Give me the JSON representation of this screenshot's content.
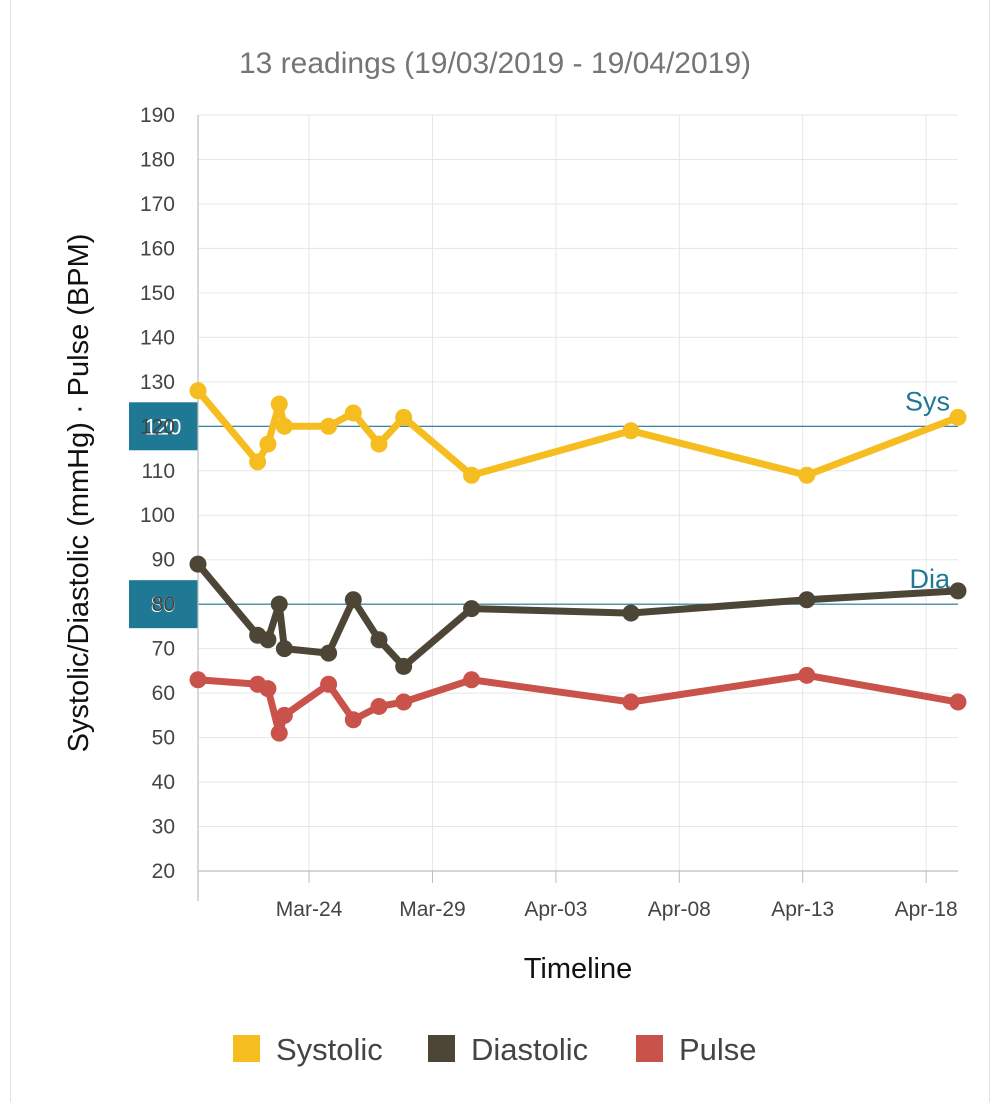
{
  "chart_data": {
    "type": "line",
    "title": "13 readings (19/03/2019 - 19/04/2019)",
    "xlabel": "Timeline",
    "ylabel": "Systolic/Diastolic (mmHg) · Pulse (BPM)",
    "ylim": [
      20,
      190
    ],
    "yticks": [
      20,
      30,
      40,
      50,
      60,
      70,
      80,
      90,
      100,
      110,
      120,
      130,
      140,
      150,
      160,
      170,
      180,
      190
    ],
    "xticks": [
      {
        "label": "Mar-24",
        "date": "2019-03-24"
      },
      {
        "label": "Mar-29",
        "date": "2019-03-29"
      },
      {
        "label": "Apr-03",
        "date": "2019-04-03"
      },
      {
        "label": "Apr-08",
        "date": "2019-04-08"
      },
      {
        "label": "Apr-13",
        "date": "2019-04-13"
      },
      {
        "label": "Apr-18",
        "date": "2019-04-18"
      }
    ],
    "xlim": [
      "2019-03-19 12:00",
      "2019-04-19 07:00"
    ],
    "x": [
      "2019-03-19 12:00",
      "2019-03-21 22:00",
      "2019-03-22 08:00",
      "2019-03-22 19:00",
      "2019-03-23 00:00",
      "2019-03-24 19:00",
      "2019-03-25 19:00",
      "2019-03-26 20:00",
      "2019-03-27 20:00",
      "2019-03-30 14:00",
      "2019-04-06 01:00",
      "2019-04-13 04:00",
      "2019-04-19 07:00"
    ],
    "series": [
      {
        "name": "Systolic",
        "color": "#f5bd1f",
        "values": [
          128,
          112,
          116,
          125,
          120,
          120,
          123,
          116,
          122,
          109,
          119,
          109,
          122
        ]
      },
      {
        "name": "Diastolic",
        "color": "#4d4637",
        "values": [
          89,
          73,
          72,
          80,
          70,
          69,
          81,
          72,
          66,
          79,
          78,
          81,
          83
        ]
      },
      {
        "name": "Pulse",
        "color": "#c9534a",
        "values": [
          63,
          62,
          61,
          51,
          55,
          62,
          54,
          57,
          58,
          63,
          58,
          64,
          58
        ]
      }
    ],
    "reference_lines": [
      {
        "value": 120,
        "label": "120",
        "tag": "Sys",
        "color": "#1f7894"
      },
      {
        "value": 80,
        "label": "80",
        "tag": "Dia",
        "color": "#1f7894"
      }
    ],
    "grid": true,
    "legend": "bottom"
  }
}
